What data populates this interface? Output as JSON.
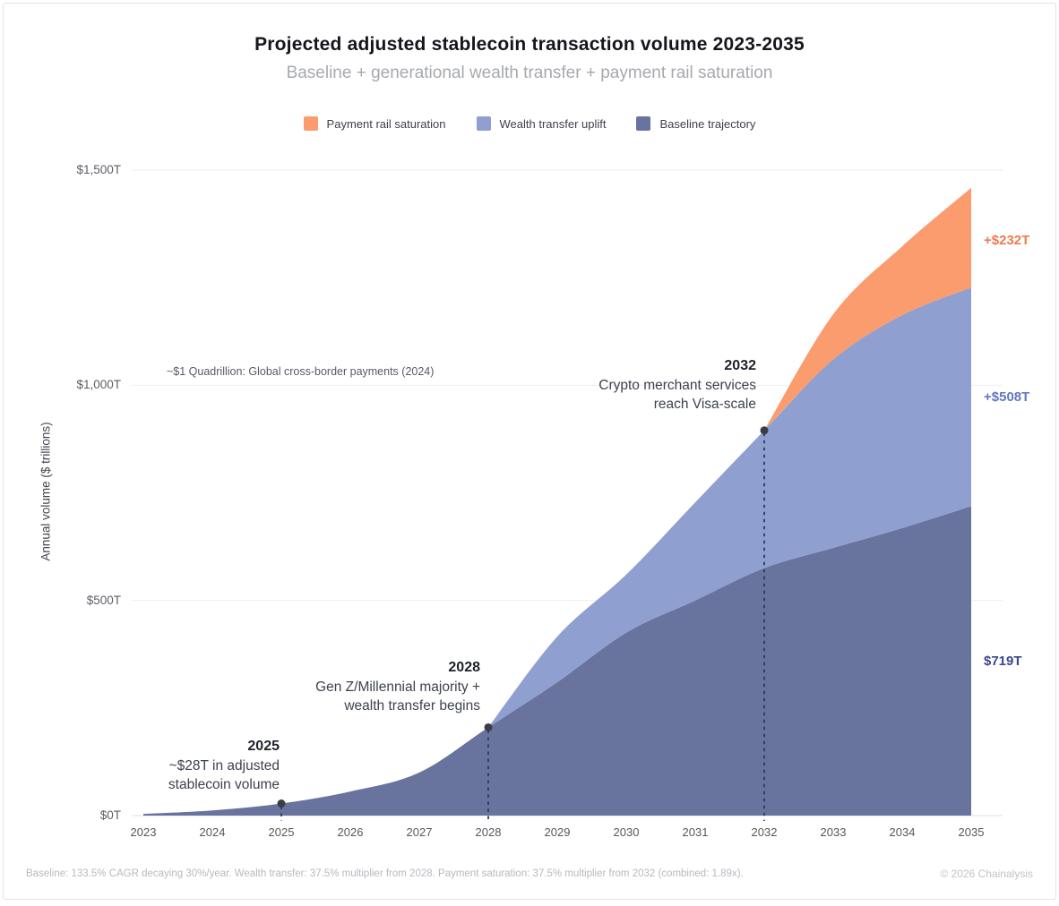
{
  "header": {
    "title": "Projected adjusted stablecoin transaction volume 2023-2035",
    "subtitle": "Baseline + generational wealth transfer + payment rail saturation"
  },
  "legend": [
    {
      "label": "Payment rail saturation",
      "color": "#FA9C6E"
    },
    {
      "label": "Wealth transfer uplift",
      "color": "#8F9FD0"
    },
    {
      "label": "Baseline trajectory",
      "color": "#68739E"
    }
  ],
  "chart_data": {
    "type": "area",
    "stacked": true,
    "title": "Projected adjusted stablecoin transaction volume 2023-2035",
    "xlabel": "",
    "ylabel": "Annual volume ($ trillions)",
    "ylim": [
      0,
      1500
    ],
    "grid": true,
    "x": [
      2023,
      2024,
      2025,
      2026,
      2027,
      2028,
      2029,
      2030,
      2031,
      2032,
      2033,
      2034,
      2035
    ],
    "series": [
      {
        "name": "Baseline trajectory",
        "color": "#68739E",
        "values": [
          4,
          12,
          28,
          56,
          100,
          205,
          310,
          425,
          500,
          575,
          622,
          668,
          719
        ]
      },
      {
        "name": "Wealth transfer uplift",
        "color": "#8F9FD0",
        "values": [
          0,
          0,
          0,
          0,
          0,
          0,
          106,
          135,
          228,
          320,
          438,
          495,
          508
        ]
      },
      {
        "name": "Payment rail saturation",
        "color": "#FA9C6E",
        "values": [
          0,
          0,
          0,
          0,
          0,
          0,
          0,
          0,
          0,
          0,
          105,
          160,
          232
        ]
      }
    ],
    "y_ticks": [
      {
        "value": 1500,
        "label": "$1,500T"
      },
      {
        "value": 1000,
        "label": "$1,000T"
      },
      {
        "value": 500,
        "label": "$500T"
      },
      {
        "value": 0,
        "label": "$0T"
      }
    ],
    "annotations": [
      {
        "year": 2025,
        "value": 28,
        "title": "2025",
        "lines": [
          "~$28T in adjusted",
          "stablecoin volume"
        ]
      },
      {
        "year": 2028,
        "value": 205,
        "title": "2028",
        "lines": [
          "Gen Z/Millennial majority +",
          "wealth transfer begins"
        ]
      },
      {
        "year": 2032,
        "value": 895,
        "title": "2032",
        "lines": [
          "Crypto merchant services",
          "reach Visa-scale"
        ]
      }
    ],
    "reference_note": {
      "text": "~$1 Quadrillion: Global cross-border payments (2024)",
      "value": 1000
    },
    "end_labels": [
      {
        "label": "+$232T",
        "color": "#EE7B4D",
        "series": "Payment rail saturation"
      },
      {
        "label": "+$508T",
        "color": "#6277C4",
        "series": "Wealth transfer uplift"
      },
      {
        "label": "$719T",
        "color": "#3C478D",
        "series": "Baseline trajectory"
      }
    ]
  },
  "footer": {
    "methodology": "Baseline: 133.5% CAGR decaying 30%/year. Wealth transfer: 37.5% multiplier from 2028. Payment saturation: 37.5% multiplier from 2032 (combined: 1.89x).",
    "copyright": "© 2026 Chainalysis"
  }
}
